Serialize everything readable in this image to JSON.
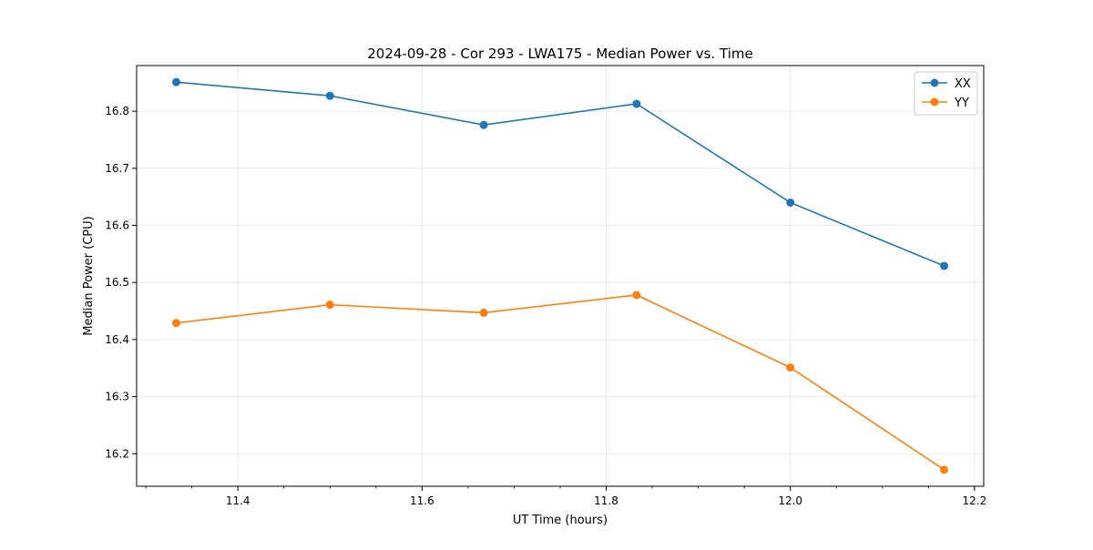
{
  "chart_data": {
    "type": "line",
    "title": "2024-09-28 - Cor 293 - LWA175 - Median Power vs. Time",
    "xlabel": "UT Time (hours)",
    "ylabel": "Median Power (CPU)",
    "xlim": [
      11.29,
      12.21
    ],
    "ylim": [
      16.143,
      16.88
    ],
    "grid": true,
    "legend_position": "top-right",
    "x_ticks": [
      11.4,
      11.6,
      11.8,
      12.0,
      12.2
    ],
    "x_tick_labels": [
      "11.4",
      "11.6",
      "11.8",
      "12.0",
      "12.2"
    ],
    "y_ticks": [
      16.2,
      16.3,
      16.4,
      16.5,
      16.6,
      16.7,
      16.8
    ],
    "y_tick_labels": [
      "16.2",
      "16.3",
      "16.4",
      "16.5",
      "16.6",
      "16.7",
      "16.8"
    ],
    "x": [
      11.333,
      11.5,
      11.667,
      11.833,
      12.0,
      12.167
    ],
    "series": [
      {
        "name": "XX",
        "color": "#1f77b4",
        "marker": "circle",
        "values": [
          16.851,
          16.827,
          16.776,
          16.813,
          16.64,
          16.529
        ]
      },
      {
        "name": "YY",
        "color": "#ff7f0e",
        "marker": "circle",
        "values": [
          16.429,
          16.461,
          16.447,
          16.478,
          16.351,
          16.172
        ]
      }
    ]
  }
}
